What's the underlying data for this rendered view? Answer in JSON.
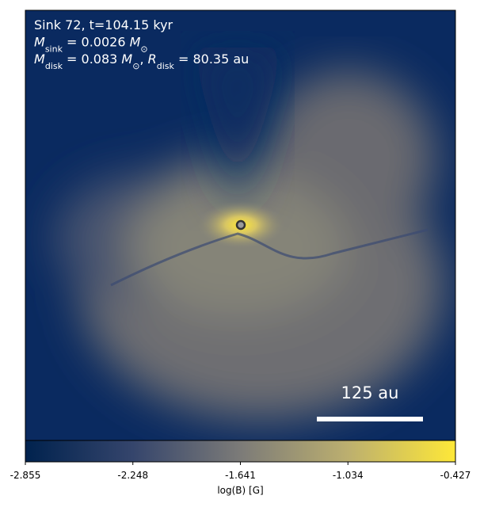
{
  "chart_data": {
    "type": "image",
    "annotations": [
      [
        {
          "text": "Sink 72, t=104.15 kyr"
        }
      ],
      [
        {
          "text": "M",
          "italic": true
        },
        {
          "sub": "sink"
        },
        {
          "text": " = 0.0026 "
        },
        {
          "text": "M",
          "italic": true
        },
        {
          "sub": "⊙"
        }
      ],
      [
        {
          "text": "M",
          "italic": true
        },
        {
          "sub": "disk"
        },
        {
          "text": " = 0.083 "
        },
        {
          "text": "M",
          "italic": true
        },
        {
          "sub": "⊙"
        },
        {
          "text": ", "
        },
        {
          "text": "R",
          "italic": true
        },
        {
          "sub": "disk"
        },
        {
          "text": " = 80.35 au"
        }
      ]
    ],
    "scale_bar": "125 au",
    "colorbar_label": "log(B) [G]",
    "clim": [
      -2.855,
      -0.427
    ],
    "cticks": [
      -2.855,
      -2.248,
      -1.641,
      -1.034,
      -0.427
    ],
    "colormap": [
      "#00224e",
      "#35456c",
      "#7c7b78",
      "#bcaf6f",
      "#fee838"
    ]
  }
}
